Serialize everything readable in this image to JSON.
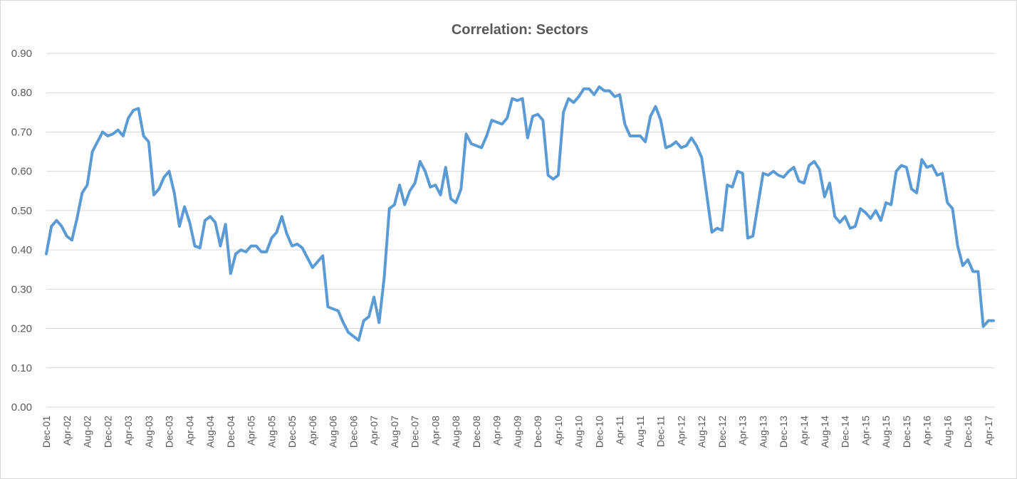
{
  "chart_data": {
    "type": "line",
    "title": "Correlation: Sectors",
    "xlabel": "",
    "ylabel": "",
    "ylim": [
      0,
      0.9
    ],
    "y_ticks": [
      "0.00",
      "0.10",
      "0.20",
      "0.30",
      "0.40",
      "0.50",
      "0.60",
      "0.70",
      "0.80",
      "0.90"
    ],
    "x_tick_labels": [
      "Dec-01",
      "Apr-02",
      "Aug-02",
      "Dec-02",
      "Apr-03",
      "Aug-03",
      "Dec-03",
      "Apr-04",
      "Aug-04",
      "Dec-04",
      "Apr-05",
      "Aug-05",
      "Dec-05",
      "Apr-06",
      "Aug-06",
      "Dec-06",
      "Apr-07",
      "Aug-07",
      "Dec-07",
      "Apr-08",
      "Aug-08",
      "Dec-08",
      "Apr-09",
      "Aug-09",
      "Dec-09",
      "Apr-10",
      "Aug-10",
      "Dec-10",
      "Apr-11",
      "Aug-11",
      "Dec-11",
      "Apr-12",
      "Aug-12",
      "Dec-12",
      "Apr-13",
      "Aug-13",
      "Dec-13",
      "Apr-14",
      "Aug-14",
      "Dec-14",
      "Apr-15",
      "Aug-15",
      "Dec-15",
      "Apr-16",
      "Aug-16",
      "Dec-16",
      "Apr-17"
    ],
    "grid": true,
    "legend": "none",
    "series": [
      {
        "color": "#5b9bd5",
        "values": [
          0.39,
          0.46,
          0.475,
          0.46,
          0.435,
          0.425,
          0.48,
          0.545,
          0.565,
          0.65,
          0.675,
          0.7,
          0.69,
          0.695,
          0.705,
          0.69,
          0.735,
          0.755,
          0.76,
          0.69,
          0.675,
          0.54,
          0.555,
          0.585,
          0.6,
          0.545,
          0.46,
          0.51,
          0.47,
          0.41,
          0.405,
          0.475,
          0.485,
          0.47,
          0.41,
          0.465,
          0.34,
          0.39,
          0.4,
          0.395,
          0.41,
          0.41,
          0.395,
          0.395,
          0.43,
          0.445,
          0.485,
          0.44,
          0.41,
          0.415,
          0.405,
          0.38,
          0.355,
          0.37,
          0.385,
          0.255,
          0.25,
          0.245,
          0.215,
          0.19,
          0.18,
          0.17,
          0.22,
          0.23,
          0.28,
          0.215,
          0.33,
          0.505,
          0.515,
          0.565,
          0.515,
          0.55,
          0.57,
          0.625,
          0.6,
          0.56,
          0.565,
          0.54,
          0.61,
          0.53,
          0.52,
          0.555,
          0.695,
          0.67,
          0.665,
          0.66,
          0.69,
          0.73,
          0.725,
          0.72,
          0.735,
          0.785,
          0.78,
          0.785,
          0.685,
          0.74,
          0.745,
          0.73,
          0.59,
          0.58,
          0.59,
          0.75,
          0.785,
          0.775,
          0.79,
          0.81,
          0.81,
          0.795,
          0.815,
          0.805,
          0.805,
          0.79,
          0.795,
          0.72,
          0.69,
          0.69,
          0.69,
          0.675,
          0.74,
          0.765,
          0.73,
          0.66,
          0.665,
          0.675,
          0.66,
          0.665,
          0.685,
          0.665,
          0.635,
          0.54,
          0.445,
          0.455,
          0.45,
          0.565,
          0.56,
          0.6,
          0.595,
          0.43,
          0.435,
          0.515,
          0.595,
          0.59,
          0.6,
          0.59,
          0.585,
          0.6,
          0.61,
          0.575,
          0.57,
          0.615,
          0.625,
          0.605,
          0.535,
          0.57,
          0.485,
          0.47,
          0.485,
          0.455,
          0.46,
          0.505,
          0.495,
          0.48,
          0.5,
          0.475,
          0.52,
          0.515,
          0.6,
          0.615,
          0.61,
          0.555,
          0.545,
          0.63,
          0.61,
          0.615,
          0.59,
          0.595,
          0.52,
          0.505,
          0.41,
          0.36,
          0.375,
          0.345,
          0.345,
          0.205,
          0.22,
          0.22
        ]
      }
    ]
  }
}
